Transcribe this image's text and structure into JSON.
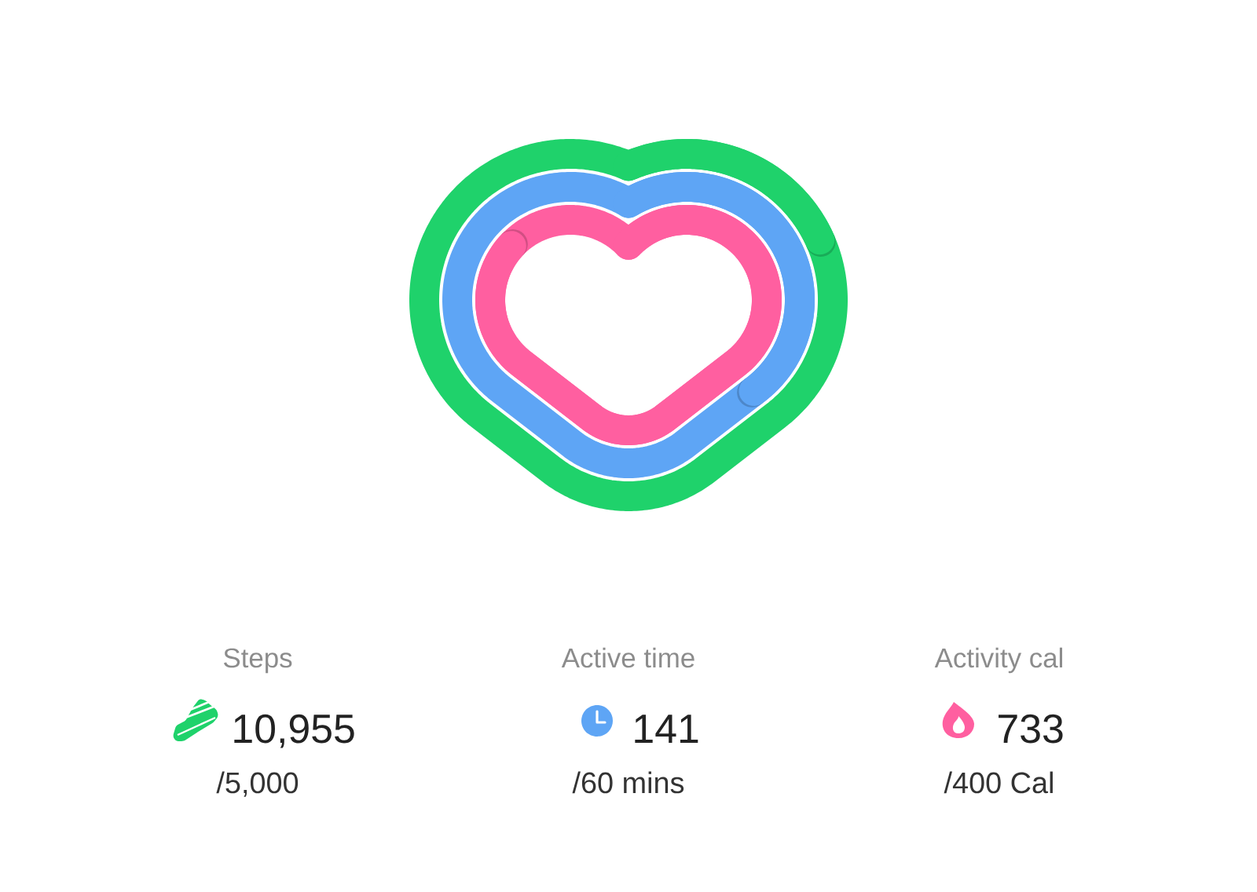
{
  "chart_data": {
    "type": "other",
    "categories": [
      "Steps",
      "Active time",
      "Activity cal"
    ],
    "series": [
      {
        "values": [
          10955,
          141,
          733
        ],
        "value_labels": [
          "10,955",
          "141",
          "733"
        ],
        "colors": [
          "#1fd26b",
          "#5ea5f5",
          "#ff5fa0"
        ]
      },
      {
        "values": [
          5000,
          60,
          400
        ],
        "value_labels": [
          "/5,000",
          "/60 mins",
          "/400 Cal"
        ]
      }
    ]
  }
}
